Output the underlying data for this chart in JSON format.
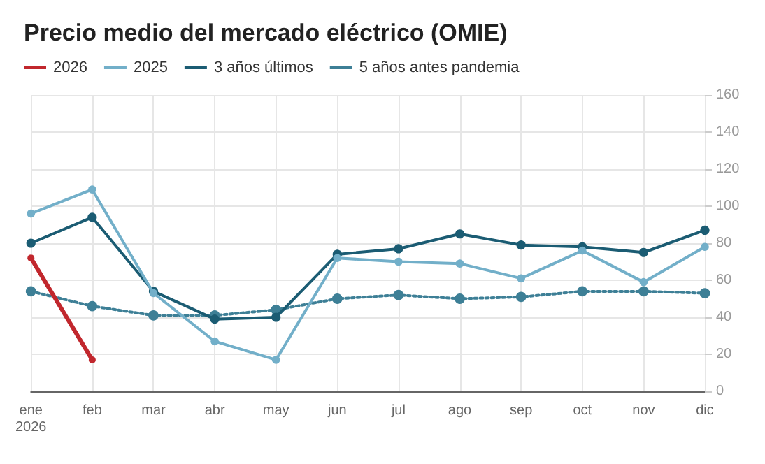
{
  "chart_data": {
    "type": "line",
    "title": "Precio medio del mercado eléctrico (OMIE)",
    "categories": [
      "ene\n2026",
      "feb",
      "mar",
      "abr",
      "may",
      "jun",
      "jul",
      "ago",
      "sep",
      "oct",
      "nov",
      "dic"
    ],
    "series": [
      {
        "name": "2026",
        "color": "#c1272d",
        "values": [
          72,
          17,
          null,
          null,
          null,
          null,
          null,
          null,
          null,
          null,
          null,
          null
        ]
      },
      {
        "name": "2025",
        "color": "#72afc9",
        "values": [
          96,
          109,
          53,
          27,
          17,
          72,
          70,
          69,
          61,
          76,
          59,
          78
        ]
      },
      {
        "name": "3 años últimos",
        "color": "#1b5c73",
        "values": [
          80,
          94,
          54,
          39,
          40,
          74,
          77,
          85,
          79,
          78,
          75,
          87
        ]
      },
      {
        "name": "5 años antes pandemia",
        "color": "#3d7f96",
        "line_style": "dotted",
        "values": [
          54,
          46,
          41,
          41,
          44,
          50,
          52,
          50,
          51,
          54,
          54,
          53
        ]
      }
    ],
    "ylim": [
      0,
      160
    ],
    "yticks": [
      0,
      20,
      40,
      60,
      80,
      100,
      120,
      140,
      160
    ],
    "grid": true,
    "legend": "top left",
    "marker": "circle",
    "line_style": "solid"
  }
}
